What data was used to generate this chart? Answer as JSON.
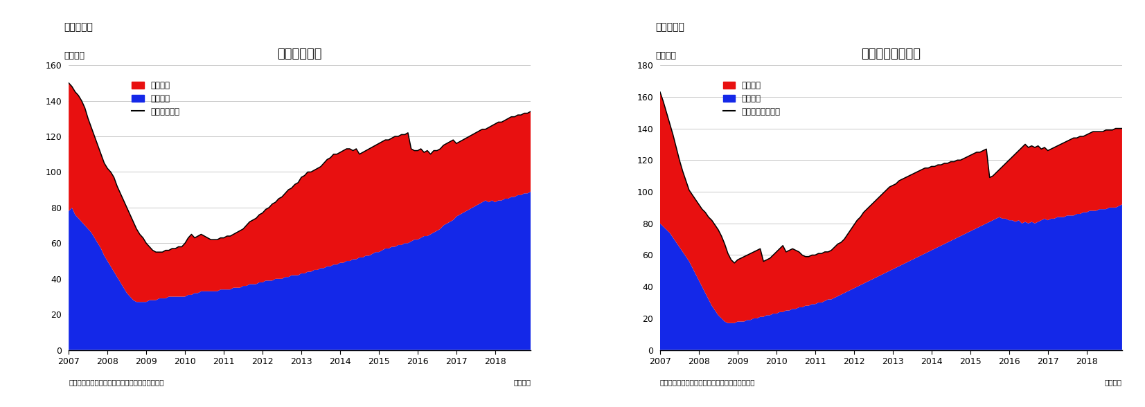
{
  "chart1_title": "住宅着工件数",
  "chart1_label": "（図表１）",
  "chart2_title": "住宅着工許可件数",
  "chart2_label": "（図表２）",
  "ylabel": "（万件）",
  "xlabel_note": "（月次）",
  "source": "（資料）センサス局よりニッセイ基礎研究所作成",
  "legend1": [
    "集合住宅",
    "一戸建て",
    "住宅着工件数"
  ],
  "legend2": [
    "集合住宅",
    "一戸建て",
    "住宅建築許可件数"
  ],
  "red_color": "#e81010",
  "blue_color": "#1428e8",
  "line_color": "#000000",
  "chart1_ylim": [
    0,
    160
  ],
  "chart1_yticks": [
    0,
    20,
    40,
    60,
    80,
    100,
    120,
    140,
    160
  ],
  "chart2_ylim": [
    0,
    180
  ],
  "chart2_yticks": [
    0,
    20,
    40,
    60,
    80,
    100,
    120,
    140,
    160,
    180
  ],
  "xtick_years": [
    2007,
    2008,
    2009,
    2010,
    2011,
    2012,
    2013,
    2014,
    2015,
    2016,
    2017,
    2018
  ],
  "chart1_blue": [
    78,
    80,
    76,
    74,
    72,
    70,
    68,
    66,
    63,
    60,
    57,
    53,
    50,
    47,
    44,
    41,
    38,
    35,
    32,
    30,
    28,
    27,
    27,
    27,
    27,
    28,
    28,
    28,
    29,
    29,
    29,
    30,
    30,
    30,
    30,
    30,
    30,
    31,
    31,
    32,
    32,
    33,
    33,
    33,
    33,
    33,
    33,
    34,
    34,
    34,
    34,
    35,
    35,
    35,
    36,
    36,
    37,
    37,
    37,
    38,
    38,
    39,
    39,
    39,
    40,
    40,
    40,
    41,
    41,
    42,
    42,
    42,
    43,
    43,
    44,
    44,
    45,
    45,
    46,
    46,
    47,
    47,
    48,
    48,
    49,
    49,
    50,
    50,
    51,
    51,
    52,
    52,
    53,
    53,
    54,
    55,
    55,
    56,
    57,
    57,
    58,
    58,
    59,
    59,
    60,
    60,
    61,
    62,
    62,
    63,
    64,
    64,
    65,
    66,
    67,
    68,
    70,
    71,
    72,
    73,
    75,
    76,
    77,
    78,
    79,
    80,
    81,
    82,
    83,
    84,
    83,
    84,
    83,
    84,
    84,
    85,
    85,
    86,
    86,
    87,
    87,
    88,
    88,
    89
  ],
  "chart1_red_top": [
    150,
    148,
    145,
    143,
    140,
    136,
    130,
    125,
    120,
    115,
    110,
    105,
    102,
    100,
    97,
    92,
    88,
    84,
    80,
    76,
    72,
    68,
    65,
    63,
    60,
    58,
    56,
    55,
    55,
    55,
    56,
    56,
    57,
    57,
    58,
    58,
    60,
    63,
    65,
    63,
    64,
    65,
    64,
    63,
    62,
    62,
    62,
    63,
    63,
    64,
    64,
    65,
    66,
    67,
    68,
    70,
    72,
    73,
    74,
    76,
    77,
    79,
    80,
    82,
    83,
    85,
    86,
    88,
    90,
    91,
    93,
    94,
    97,
    98,
    100,
    100,
    101,
    102,
    103,
    105,
    107,
    108,
    110,
    110,
    111,
    112,
    113,
    113,
    112,
    113,
    110,
    111,
    112,
    113,
    114,
    115,
    116,
    117,
    118,
    118,
    119,
    120,
    120,
    121,
    121,
    122,
    113,
    112,
    112,
    113,
    111,
    112,
    110,
    112,
    112,
    113,
    115,
    116,
    117,
    118,
    116,
    117,
    118,
    119,
    120,
    121,
    122,
    123,
    124,
    124,
    125,
    126,
    127,
    128,
    128,
    129,
    130,
    131,
    131,
    132,
    132,
    133,
    133,
    134
  ],
  "chart2_blue": [
    80,
    78,
    76,
    74,
    71,
    68,
    65,
    62,
    59,
    56,
    52,
    48,
    44,
    40,
    36,
    32,
    28,
    25,
    22,
    20,
    18,
    17,
    17,
    17,
    18,
    18,
    18,
    19,
    19,
    20,
    20,
    21,
    21,
    22,
    22,
    23,
    23,
    24,
    24,
    25,
    25,
    26,
    26,
    27,
    27,
    28,
    28,
    29,
    29,
    30,
    30,
    31,
    32,
    32,
    33,
    34,
    35,
    36,
    37,
    38,
    39,
    40,
    41,
    42,
    43,
    44,
    45,
    46,
    47,
    48,
    49,
    50,
    51,
    52,
    53,
    54,
    55,
    56,
    57,
    58,
    59,
    60,
    61,
    62,
    63,
    64,
    65,
    66,
    67,
    68,
    69,
    70,
    71,
    72,
    73,
    74,
    75,
    76,
    77,
    78,
    79,
    80,
    81,
    82,
    83,
    84,
    83,
    83,
    82,
    82,
    81,
    82,
    80,
    81,
    80,
    81,
    80,
    81,
    82,
    83,
    82,
    83,
    83,
    84,
    84,
    84,
    85,
    85,
    85,
    86,
    86,
    87,
    87,
    88,
    88,
    88,
    89,
    89,
    89,
    90,
    90,
    90,
    91,
    92
  ],
  "chart2_red_top": [
    163,
    157,
    150,
    143,
    136,
    128,
    120,
    113,
    107,
    101,
    98,
    95,
    92,
    89,
    87,
    84,
    82,
    79,
    76,
    72,
    67,
    61,
    57,
    55,
    57,
    58,
    59,
    60,
    61,
    62,
    63,
    64,
    56,
    57,
    58,
    60,
    62,
    64,
    66,
    62,
    63,
    64,
    63,
    62,
    60,
    59,
    59,
    60,
    60,
    61,
    61,
    62,
    62,
    63,
    65,
    67,
    68,
    70,
    73,
    76,
    79,
    82,
    84,
    87,
    89,
    91,
    93,
    95,
    97,
    99,
    101,
    103,
    104,
    105,
    107,
    108,
    109,
    110,
    111,
    112,
    113,
    114,
    115,
    115,
    116,
    116,
    117,
    117,
    118,
    118,
    119,
    119,
    120,
    120,
    121,
    122,
    123,
    124,
    125,
    125,
    126,
    127,
    109,
    110,
    112,
    114,
    116,
    118,
    120,
    122,
    124,
    126,
    128,
    130,
    128,
    129,
    128,
    129,
    127,
    128,
    126,
    127,
    128,
    129,
    130,
    131,
    132,
    133,
    134,
    134,
    135,
    135,
    136,
    137,
    138,
    138,
    138,
    138,
    139,
    139,
    139,
    140,
    140,
    140
  ]
}
